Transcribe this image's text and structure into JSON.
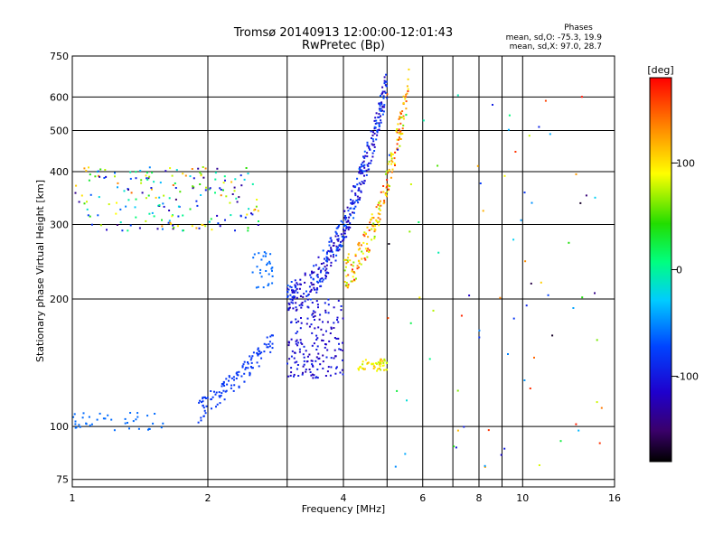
{
  "chart_data": {
    "type": "scatter",
    "title": "Tromsø 20140913 12:00:00-12:01:43",
    "subtitle": "RwPretec (Bp)",
    "xlabel": "Frequency [MHz]",
    "ylabel": "Stationary phase Virtual Height [km]",
    "x_scale": "log",
    "y_scale": "log",
    "xlim": [
      1,
      16
    ],
    "ylim": [
      72,
      750
    ],
    "x_ticks": [
      "1",
      "2",
      "4",
      "6",
      "8",
      "10",
      "16"
    ],
    "x_tick_values": [
      1,
      2,
      4,
      6,
      8,
      10,
      16
    ],
    "y_ticks": [
      "75",
      "100",
      "200",
      "300",
      "400",
      "500",
      "600",
      "750"
    ],
    "y_tick_values": [
      75,
      100,
      200,
      300,
      400,
      500,
      600,
      750
    ],
    "grid": true,
    "stats": {
      "heading": "Phases",
      "line_o": "mean, sd,O: -75.3, 19.9",
      "line_x": "mean, sd,X: 97.0, 28.7"
    },
    "colorbar": {
      "label": "[deg]",
      "ticks": [
        "100",
        "0",
        "-100"
      ],
      "tick_values": [
        100,
        0,
        -100
      ],
      "range": [
        -180,
        180
      ],
      "colormap": "rainbow"
    },
    "clusters": [
      {
        "name": "low-F layer trace",
        "x": [
          1.0,
          1.6
        ],
        "y": [
          98,
          108
        ],
        "phase": [
          -60,
          -60
        ],
        "density": 40
      },
      {
        "name": "E-region hook",
        "x": [
          1.9,
          2.8
        ],
        "y": [
          108,
          160
        ],
        "phase": [
          -80,
          -80
        ],
        "density": 120
      },
      {
        "name": "early spread",
        "x": [
          1.0,
          2.6
        ],
        "y": [
          290,
          410
        ],
        "phase": [
          -150,
          150
        ],
        "density": 200
      },
      {
        "name": "F1 trace",
        "x": [
          2.5,
          2.8
        ],
        "y": [
          210,
          260
        ],
        "phase": [
          -60,
          -60
        ],
        "density": 30
      },
      {
        "name": "O-mode F2 trace",
        "x": [
          3.0,
          5.0
        ],
        "y": [
          200,
          650
        ],
        "phase": [
          -130,
          -60
        ],
        "density": 380
      },
      {
        "name": "lower O-mode spread",
        "x": [
          3.0,
          4.0
        ],
        "y": [
          130,
          200
        ],
        "phase": [
          -130,
          -90
        ],
        "density": 180
      },
      {
        "name": "X-mode F2 trace",
        "x": [
          4.0,
          5.6
        ],
        "y": [
          230,
          650
        ],
        "phase": [
          60,
          170
        ],
        "density": 200
      },
      {
        "name": "X-mode low patch",
        "x": [
          4.3,
          5.0
        ],
        "y": [
          135,
          145
        ],
        "phase": [
          70,
          120
        ],
        "density": 50
      },
      {
        "name": "scattered noise",
        "x": [
          5.0,
          15.0
        ],
        "y": [
          80,
          650
        ],
        "phase": [
          -180,
          180
        ],
        "density": 80
      }
    ]
  }
}
